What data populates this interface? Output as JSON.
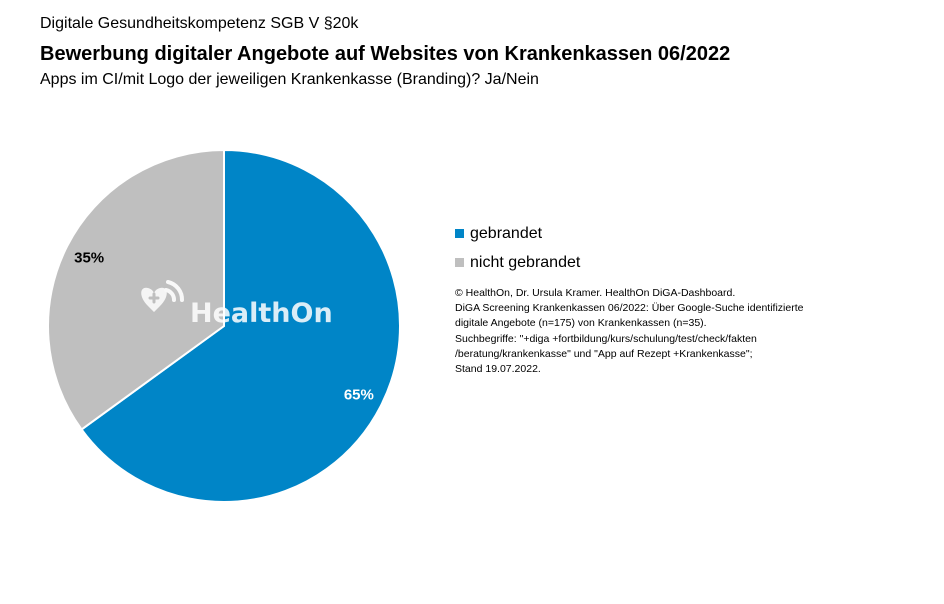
{
  "header": {
    "kicker": "Digitale Gesundheitskompetenz SGB V §20k",
    "title": "Bewerbung digitaler Angebote auf Websites von Krankenkassen 06/2022",
    "subtitle": "Apps im CI/mit Logo der jeweiligen Krankenkasse (Branding)? Ja/Nein"
  },
  "chart_data": {
    "type": "pie",
    "categories": [
      "gebrandet",
      "nicht gebrandet"
    ],
    "values": [
      65,
      35
    ],
    "data_labels": [
      "65%",
      "35%"
    ],
    "colors": [
      "#0085c7",
      "#bfbfbf"
    ],
    "start_angle_deg": 0,
    "direction": "clockwise",
    "legend_position": "right"
  },
  "watermark": {
    "text": "HealthOn",
    "icon": "heart-wifi-icon"
  },
  "source": {
    "lines": [
      "© HealthOn, Dr. Ursula Kramer. HealthOn DiGA-Dashboard.",
      "DiGA Screening Krankenkassen 06/2022: Über Google-Suche identifizierte",
      "digitale Angebote (n=175) von Krankenkassen (n=35).",
      "Suchbegriffe: \"+diga +fortbildung/kurs/schulung/test/check/fakten",
      "/beratung/krankenkasse\" und \"App auf Rezept +Krankenkasse\";",
      "Stand 19.07.2022."
    ]
  }
}
